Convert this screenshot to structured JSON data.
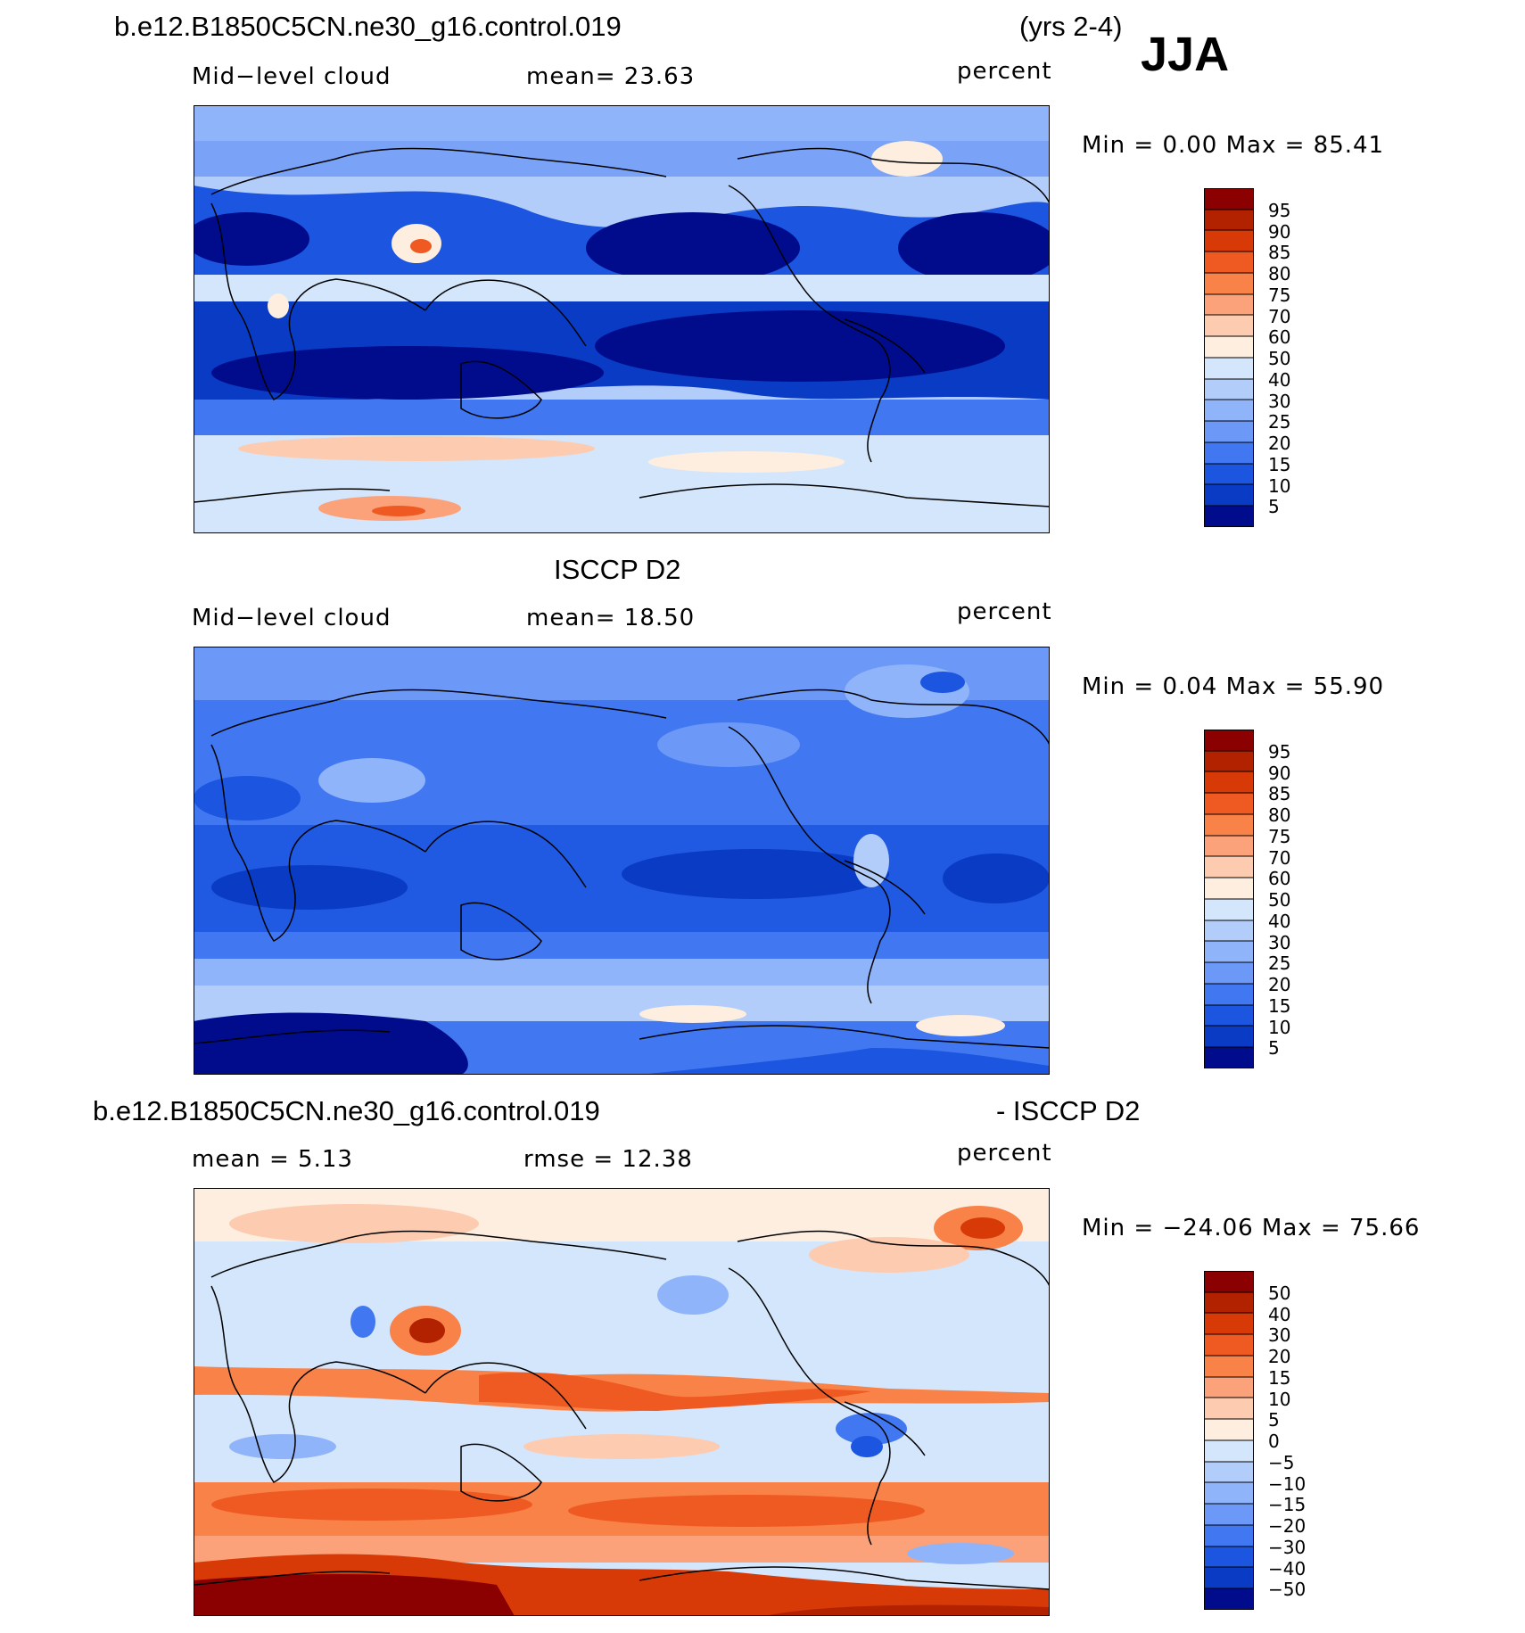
{
  "header": {
    "case_name": "b.e12.B1850C5CN.ne30_g16.control.019",
    "years": "(yrs 2-4)",
    "season": "JJA"
  },
  "panels": [
    {
      "id": "model",
      "title": "",
      "left_label": "Mid−level cloud",
      "center_label": "mean=   23.63",
      "units": "percent",
      "minmax": "Min =      0.00  Max =    85.41",
      "colorbar": {
        "labels": [
          "95",
          "90",
          "85",
          "80",
          "75",
          "70",
          "60",
          "50",
          "40",
          "30",
          "25",
          "20",
          "15",
          "10",
          "5"
        ],
        "colors": [
          "#8b0000",
          "#b22200",
          "#d83a07",
          "#ef5a22",
          "#f98249",
          "#fba27a",
          "#fdcbb0",
          "#fdeedf",
          "#d3e6fb",
          "#b3cdfb",
          "#90b4fa",
          "#6c98f8",
          "#4177f0",
          "#1b55e0",
          "#0a3bc4",
          "#000c8c"
        ]
      }
    },
    {
      "id": "obs",
      "title": "ISCCP D2",
      "left_label": "Mid−level cloud",
      "center_label": "mean=   18.50",
      "units": "percent",
      "minmax": "Min =      0.04  Max =    55.90",
      "colorbar": {
        "labels": [
          "95",
          "90",
          "85",
          "80",
          "75",
          "70",
          "60",
          "50",
          "40",
          "30",
          "25",
          "20",
          "15",
          "10",
          "5"
        ],
        "colors": [
          "#8b0000",
          "#b22200",
          "#d83a07",
          "#ef5a22",
          "#f98249",
          "#fba27a",
          "#fdcbb0",
          "#fdeedf",
          "#d3e6fb",
          "#b3cdfb",
          "#90b4fa",
          "#6c98f8",
          "#4177f0",
          "#1b55e0",
          "#0a3bc4",
          "#000c8c"
        ]
      }
    },
    {
      "id": "diff",
      "title_left": "b.e12.B1850C5CN.ne30_g16.control.019",
      "title_right": "- ISCCP D2",
      "left_label": "mean  =     5.13",
      "center_label": "rmse  =    12.38",
      "units": "percent",
      "minmax": "Min  =  −24.06  Max  =     75.66",
      "colorbar": {
        "labels": [
          "50",
          "40",
          "30",
          "20",
          "15",
          "10",
          "5",
          "0",
          "−5",
          "−10",
          "−15",
          "−20",
          "−30",
          "−40",
          "−50"
        ],
        "colors": [
          "#8b0000",
          "#b22200",
          "#d83a07",
          "#ef5a22",
          "#f98249",
          "#fba27a",
          "#fdcbb0",
          "#fdeedf",
          "#d3e6fb",
          "#b3cdfb",
          "#90b4fa",
          "#6c98f8",
          "#4177f0",
          "#1b55e0",
          "#0a3bc4",
          "#000c8c"
        ]
      }
    }
  ]
}
